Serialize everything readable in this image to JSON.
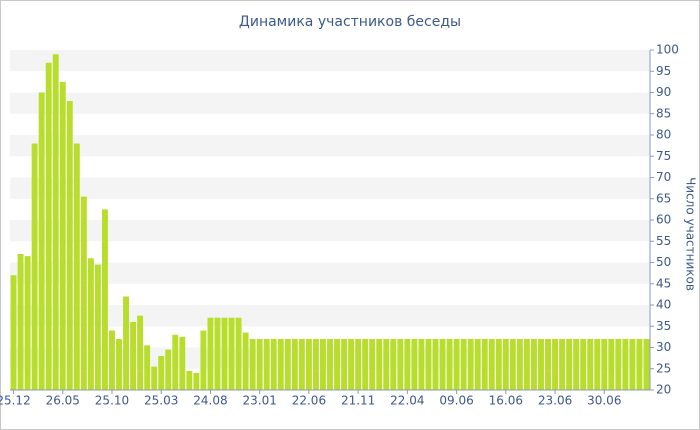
{
  "chart_data": {
    "type": "bar",
    "title": "Динамика участников беседы",
    "y_label": "Число участников",
    "color": "#b8dd2c",
    "categories": [
      "25.12",
      null,
      null,
      null,
      null,
      null,
      null,
      "26.05",
      null,
      null,
      null,
      null,
      null,
      null,
      "25.10",
      null,
      null,
      null,
      null,
      null,
      null,
      "25.03",
      null,
      null,
      null,
      null,
      null,
      null,
      "24.08",
      null,
      null,
      null,
      null,
      null,
      null,
      "23.01",
      null,
      null,
      null,
      null,
      null,
      null,
      "22.06",
      null,
      null,
      null,
      null,
      null,
      null,
      "21.11",
      null,
      null,
      null,
      null,
      null,
      null,
      "22.04",
      null,
      null,
      null,
      null,
      null,
      null,
      "09.06",
      null,
      null,
      null,
      null,
      null,
      null,
      "16.06",
      null,
      null,
      null,
      null,
      null,
      null,
      "23.06",
      null,
      null,
      null,
      null,
      null,
      null,
      "30.06",
      null,
      null,
      null,
      null,
      null,
      null
    ],
    "values": [
      47,
      52,
      51.5,
      78,
      90,
      97,
      99,
      92.5,
      88,
      78,
      65.5,
      51,
      49.5,
      62.5,
      34,
      32,
      42,
      36,
      37.5,
      30.5,
      25.5,
      28,
      29.5,
      33,
      32.5,
      24.5,
      24,
      34,
      37,
      37,
      37,
      37,
      37,
      33.5,
      32,
      32,
      32,
      32,
      32,
      32,
      32,
      32,
      32,
      32,
      32,
      32,
      32,
      32,
      32,
      32,
      32,
      32,
      32,
      32,
      32,
      32,
      32,
      32,
      32,
      32,
      32,
      32,
      32,
      32,
      32,
      32,
      32,
      32,
      32,
      32,
      32,
      32,
      32,
      32,
      32,
      32,
      32,
      32,
      32,
      32,
      32,
      32,
      32,
      32,
      32,
      32,
      32,
      32,
      32,
      32,
      32
    ],
    "ylim": [
      20,
      100
    ],
    "yticks": [
      20,
      25,
      30,
      35,
      40,
      45,
      50,
      55,
      60,
      65,
      70,
      75,
      80,
      85,
      90,
      95,
      100
    ],
    "grid": true
  }
}
